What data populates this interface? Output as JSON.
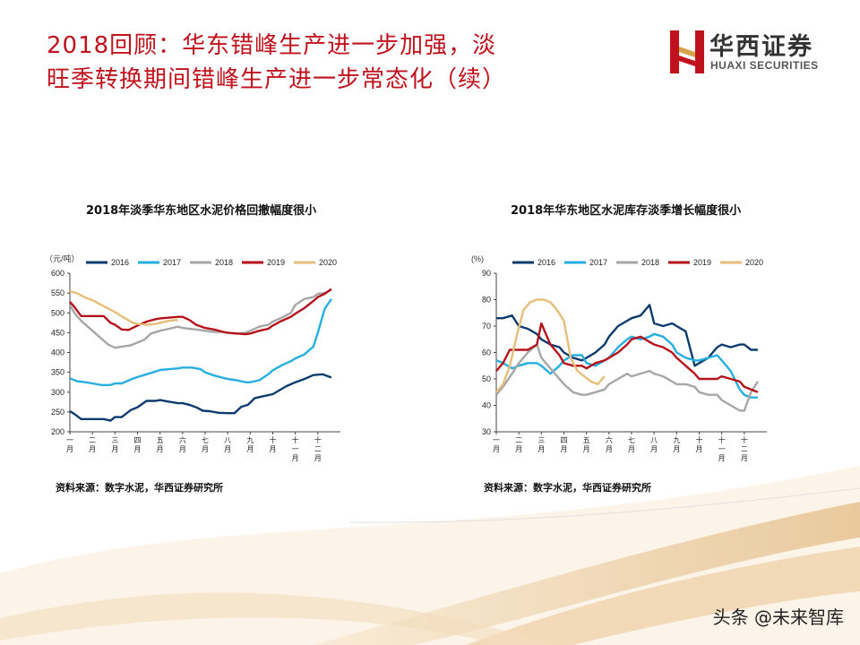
{
  "header": {
    "title_line1": "2018回顾：华东错峰生产进一步加强，淡",
    "title_line2": "旺季转换期间错峰生产进一步常态化（续）"
  },
  "brand": {
    "name": "华西证券",
    "english": "HUAXI SECURITIES",
    "primary_color": "#c0121c"
  },
  "watermark": "头条 @未来智库",
  "colors": {
    "2016": "#0d3b6e",
    "2017": "#27aee0",
    "2018": "#a6a6a6",
    "2019": "#b5121b",
    "2020": "#e6be7a"
  },
  "chart_data": [
    {
      "type": "line",
      "title": "2018年淡季华东地区水泥价格回撤幅度很小",
      "ylabel": "（元/吨）",
      "ylim": [
        200,
        600
      ],
      "yticks": [
        "200",
        "250",
        "300",
        "350",
        "400",
        "450",
        "500",
        "550",
        "600"
      ],
      "xticks": [
        "一月",
        "二月",
        "三月",
        "四月",
        "五月",
        "六月",
        "七月",
        "八月",
        "九月",
        "十月",
        "十一月",
        "十二月"
      ],
      "legend_position": "top",
      "source": "资料来源：数字水泥，华西证券研究所",
      "series": [
        {
          "name": "2016",
          "color": "#0d3b6e",
          "x": [
            0,
            0.2,
            0.5,
            1,
            1.5,
            1.8,
            2,
            2.3,
            2.7,
            3,
            3.4,
            3.8,
            4,
            4.4,
            4.8,
            5,
            5.3,
            5.6,
            5.9,
            6.2,
            6.6,
            7,
            7.3,
            7.6,
            7.9,
            8.2,
            8.6,
            9,
            9.3,
            9.6,
            10,
            10.4,
            10.8,
            11.2,
            11.6
          ],
          "values": [
            252,
            245,
            232,
            232,
            232,
            228,
            237,
            237,
            255,
            262,
            278,
            278,
            280,
            276,
            272,
            272,
            268,
            262,
            253,
            252,
            248,
            247,
            247,
            263,
            268,
            285,
            290,
            295,
            305,
            315,
            325,
            333,
            343,
            345,
            337
          ]
        },
        {
          "name": "2017",
          "color": "#27aee0",
          "x": [
            0,
            0.3,
            0.7,
            1,
            1.4,
            1.8,
            2,
            2.3,
            2.7,
            3,
            3.4,
            3.8,
            4,
            4.4,
            4.8,
            5,
            5.4,
            5.8,
            6,
            6.4,
            6.8,
            7,
            7.4,
            7.8,
            8,
            8.4,
            8.8,
            9,
            9.4,
            9.8,
            10,
            10.4,
            10.8,
            11,
            11.3,
            11.6
          ],
          "values": [
            335,
            328,
            325,
            322,
            318,
            318,
            322,
            322,
            332,
            338,
            345,
            352,
            356,
            358,
            360,
            362,
            362,
            358,
            350,
            342,
            336,
            333,
            330,
            325,
            325,
            330,
            345,
            355,
            368,
            378,
            385,
            395,
            415,
            450,
            510,
            535
          ]
        },
        {
          "name": "2018",
          "color": "#a6a6a6",
          "x": [
            0,
            0.2,
            0.5,
            0.8,
            1,
            1.3,
            1.7,
            2,
            2.3,
            2.7,
            3,
            3.3,
            3.6,
            4,
            4.4,
            4.8,
            5,
            5.3,
            5.6,
            6,
            6.4,
            6.8,
            7,
            7.4,
            7.8,
            8,
            8.4,
            8.8,
            9,
            9.4,
            9.8,
            10,
            10.4,
            10.8,
            11,
            11.3,
            11.6
          ],
          "values": [
            520,
            500,
            480,
            465,
            455,
            440,
            420,
            412,
            415,
            418,
            425,
            432,
            448,
            455,
            460,
            465,
            462,
            460,
            458,
            455,
            452,
            452,
            450,
            448,
            450,
            455,
            465,
            470,
            478,
            488,
            500,
            520,
            535,
            540,
            548,
            550,
            558
          ]
        },
        {
          "name": "2019",
          "color": "#b5121b",
          "x": [
            0,
            0.2,
            0.5,
            1,
            1.5,
            1.8,
            2,
            2.3,
            2.6,
            3,
            3.4,
            3.8,
            4,
            4.4,
            4.8,
            5,
            5.3,
            5.6,
            6,
            6.4,
            6.8,
            7,
            7.4,
            7.8,
            8,
            8.4,
            8.8,
            9,
            9.4,
            9.8,
            10,
            10.4,
            10.8,
            11,
            11.3,
            11.6
          ],
          "values": [
            528,
            515,
            492,
            492,
            492,
            475,
            470,
            458,
            457,
            468,
            478,
            484,
            486,
            488,
            490,
            490,
            482,
            470,
            462,
            458,
            452,
            450,
            448,
            446,
            448,
            455,
            460,
            468,
            480,
            490,
            498,
            512,
            530,
            540,
            548,
            560
          ]
        },
        {
          "name": "2020",
          "color": "#e6be7a",
          "x": [
            0,
            0.3,
            0.7,
            1,
            1.4,
            1.8,
            2,
            2.4,
            2.8,
            3,
            3.4,
            3.8,
            4,
            4.4,
            4.8
          ],
          "values": [
            555,
            550,
            538,
            532,
            520,
            508,
            502,
            488,
            475,
            472,
            470,
            472,
            475,
            480,
            482
          ]
        }
      ]
    },
    {
      "type": "line",
      "title": "2018年华东地区水泥库存淡季增长幅度很小",
      "ylabel": "(%)",
      "ylim": [
        30,
        90
      ],
      "yticks": [
        "30",
        "40",
        "50",
        "60",
        "70",
        "80",
        "90"
      ],
      "xticks": [
        "一月",
        "二月",
        "三月",
        "四月",
        "五月",
        "六月",
        "七月",
        "八月",
        "九月",
        "十月",
        "十一月",
        "十二月"
      ],
      "legend_position": "top",
      "source": "资料来源：数字水泥，华西证券研究所",
      "series": [
        {
          "name": "2016",
          "color": "#0d3b6e",
          "x": [
            0,
            0.3,
            0.7,
            1,
            1.4,
            1.8,
            2,
            2.4,
            2.8,
            3,
            3.4,
            3.8,
            4,
            4.4,
            4.8,
            5,
            5.4,
            5.8,
            6,
            6.4,
            6.8,
            7,
            7.4,
            7.8,
            8,
            8.4,
            8.8,
            9,
            9.4,
            9.8,
            10,
            10.4,
            10.8,
            11,
            11.3,
            11.6
          ],
          "values": [
            73,
            73,
            74,
            70,
            69,
            67,
            65,
            63,
            62,
            60,
            58,
            57,
            58,
            60,
            63,
            66,
            70,
            72,
            73,
            74,
            78,
            71,
            70,
            71,
            70,
            68,
            55,
            56,
            58,
            62,
            63,
            62,
            63,
            63,
            61,
            61
          ]
        },
        {
          "name": "2017",
          "color": "#27aee0",
          "x": [
            0,
            0.3,
            0.7,
            1,
            1.4,
            1.8,
            2,
            2.4,
            2.8,
            3,
            3.4,
            3.8,
            4,
            4.4,
            4.8,
            5,
            5.4,
            5.8,
            6,
            6.4,
            6.8,
            7,
            7.4,
            7.8,
            8,
            8.4,
            8.8,
            9,
            9.4,
            9.8,
            10,
            10.4,
            10.8,
            11,
            11.3,
            11.6
          ],
          "values": [
            57,
            56,
            54,
            55,
            56,
            56,
            55,
            52,
            55,
            57,
            59,
            59,
            56,
            55,
            57,
            58,
            62,
            65,
            66,
            65,
            66,
            67,
            66,
            63,
            60,
            58,
            57,
            57,
            58,
            59,
            57,
            53,
            46,
            44,
            43,
            43
          ]
        },
        {
          "name": "2018",
          "color": "#a6a6a6",
          "x": [
            0,
            0.3,
            0.7,
            1,
            1.4,
            1.8,
            2,
            2.4,
            2.8,
            3,
            3.4,
            3.8,
            4,
            4.4,
            4.8,
            5,
            5.4,
            5.8,
            6,
            6.4,
            6.8,
            7,
            7.4,
            7.8,
            8,
            8.4,
            8.8,
            9,
            9.4,
            9.8,
            10,
            10.4,
            10.8,
            11,
            11.3,
            11.6
          ],
          "values": [
            44,
            47,
            52,
            56,
            60,
            63,
            58,
            54,
            50,
            48,
            45,
            44,
            44,
            45,
            46,
            48,
            50,
            52,
            51,
            52,
            53,
            52,
            51,
            49,
            48,
            48,
            47,
            45,
            44,
            44,
            42,
            40,
            38,
            38,
            45,
            49
          ]
        },
        {
          "name": "2019",
          "color": "#b5121b",
          "x": [
            0,
            0.3,
            0.6,
            1,
            1.4,
            1.8,
            2,
            2.4,
            2.8,
            3,
            3.4,
            3.8,
            4,
            4.4,
            4.8,
            5,
            5.4,
            5.8,
            6,
            6.4,
            6.8,
            7,
            7.4,
            7.8,
            8,
            8.4,
            8.8,
            9,
            9.4,
            9.8,
            10,
            10.4,
            10.8,
            11,
            11.3,
            11.6
          ],
          "values": [
            53,
            56,
            61,
            61,
            61,
            63,
            71,
            63,
            59,
            56,
            55,
            55,
            54,
            56,
            57,
            58,
            60,
            63,
            65,
            66,
            64,
            63,
            62,
            60,
            58,
            55,
            52,
            50,
            50,
            50,
            51,
            50,
            49,
            47,
            46,
            45
          ]
        },
        {
          "name": "2020",
          "color": "#e6be7a",
          "x": [
            0,
            0.3,
            0.6,
            0.9,
            1.2,
            1.5,
            1.8,
            2.1,
            2.4,
            2.7,
            3,
            3.3,
            3.6,
            3.9,
            4.2,
            4.5,
            4.8
          ],
          "values": [
            45,
            48,
            55,
            66,
            76,
            79,
            80,
            80,
            79,
            76,
            72,
            58,
            53,
            51,
            49,
            48,
            51
          ]
        }
      ]
    }
  ]
}
